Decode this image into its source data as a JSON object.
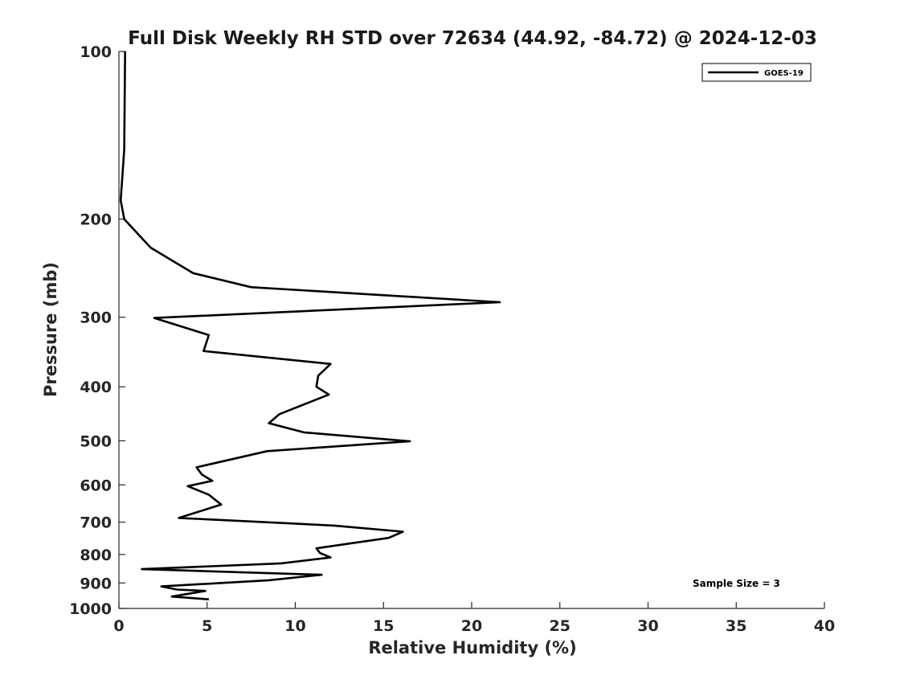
{
  "chart_data": {
    "type": "line",
    "title": "Full Disk Weekly RH STD over 72634 (44.92, -84.72) @ 2024-12-03",
    "xlabel": "Relative Humidity (%)",
    "ylabel": "Pressure (mb)",
    "xlim": [
      0,
      40
    ],
    "ylim": [
      100,
      1000
    ],
    "y_scale": "log",
    "y_reversed": true,
    "x_ticks": [
      0,
      5,
      10,
      15,
      20,
      25,
      30,
      35,
      40
    ],
    "x_tick_labels": [
      "0",
      "5",
      "10",
      "15",
      "20",
      "25",
      "30",
      "35",
      "40"
    ],
    "y_ticks": [
      100,
      200,
      300,
      400,
      500,
      600,
      700,
      800,
      900,
      1000
    ],
    "y_tick_labels": [
      "100",
      "200",
      "300",
      "400",
      "500",
      "600",
      "700",
      "800",
      "900",
      "1000"
    ],
    "grid": false,
    "legend_position": "top-right",
    "series": [
      {
        "name": "GOES-19",
        "color": "#000000",
        "points": [
          [
            0.35,
            100
          ],
          [
            0.3,
            150
          ],
          [
            0.1,
            185
          ],
          [
            0.3,
            200
          ],
          [
            1.8,
            225
          ],
          [
            4.2,
            250
          ],
          [
            7.5,
            265
          ],
          [
            21.6,
            282
          ],
          [
            2.0,
            301
          ],
          [
            5.1,
            323
          ],
          [
            4.8,
            345
          ],
          [
            12.0,
            364
          ],
          [
            11.3,
            382
          ],
          [
            11.2,
            400
          ],
          [
            11.9,
            413
          ],
          [
            9.1,
            448
          ],
          [
            8.5,
            465
          ],
          [
            10.5,
            483
          ],
          [
            16.5,
            501
          ],
          [
            8.4,
            522
          ],
          [
            4.4,
            558
          ],
          [
            4.7,
            575
          ],
          [
            5.3,
            590
          ],
          [
            3.9,
            603
          ],
          [
            5.1,
            625
          ],
          [
            5.8,
            651
          ],
          [
            3.4,
            688
          ],
          [
            12.2,
            710
          ],
          [
            16.1,
            728
          ],
          [
            15.3,
            747
          ],
          [
            11.2,
            780
          ],
          [
            11.4,
            795
          ],
          [
            12.0,
            810
          ],
          [
            9.2,
            830
          ],
          [
            1.3,
            850
          ],
          [
            11.5,
            870
          ],
          [
            8.5,
            890
          ],
          [
            2.4,
            913
          ],
          [
            3.3,
            925
          ],
          [
            4.9,
            930
          ],
          [
            3.0,
            952
          ],
          [
            5.1,
            963
          ]
        ]
      }
    ],
    "annotations": [
      {
        "text": "Sample Size = 3",
        "position": "bottom-right"
      }
    ]
  }
}
